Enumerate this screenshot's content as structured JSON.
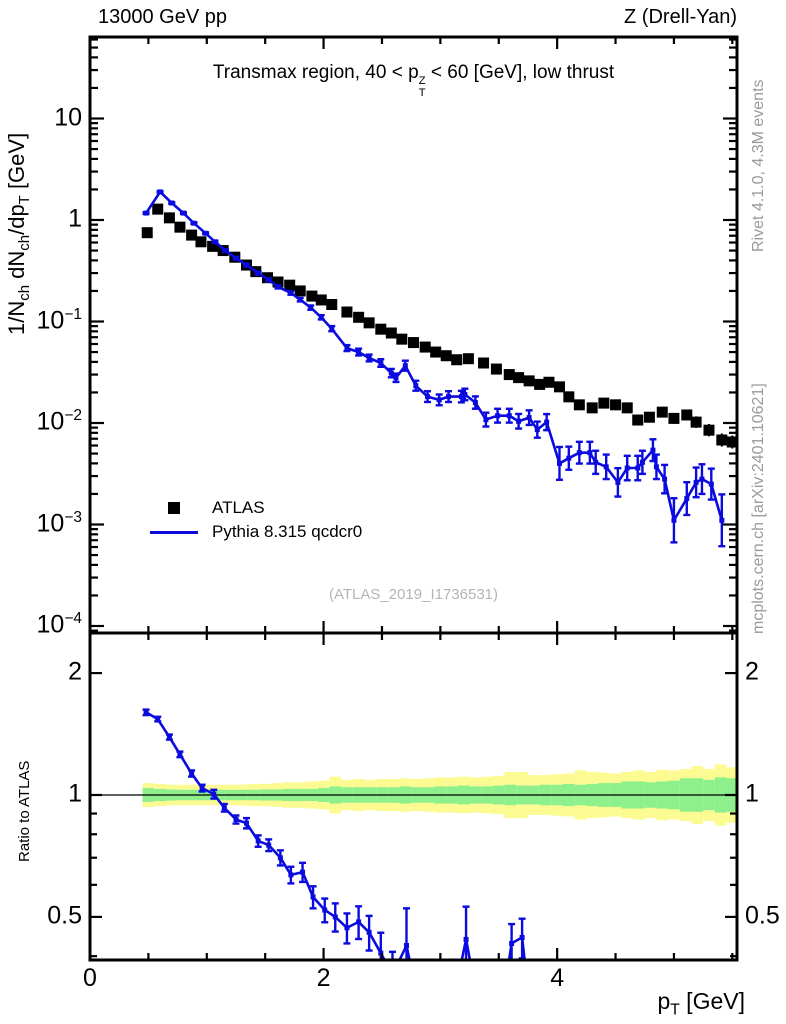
{
  "header": {
    "left": "13000 GeV pp",
    "right": "Z (Drell-Yan)"
  },
  "panel_title": {
    "prefix": "Transmax region, 40 < p",
    "stack_top": "Z",
    "stack_bottom": "T",
    "suffix": " < 60 [GeV], low thrust"
  },
  "watermark": "(ATLAS_2019_I1736531)",
  "side_notes": {
    "top": "Rivet 4.1.0,  4.3M events",
    "bottom": "mcplots.cern.ch [arXiv:2401.10621]"
  },
  "legend": [
    {
      "label": "ATLAS",
      "marker": "square",
      "color": "#000000"
    },
    {
      "label": "Pythia 8.315 qcdcr0",
      "marker": "line",
      "color": "#0b0bdf"
    }
  ],
  "colors": {
    "mc_blue": "#0b0bdf",
    "band_green": "#8df08c",
    "band_yellow": "#fbfb91",
    "note_gray": "#9a9a9a",
    "watermark_gray": "#b5b5b5"
  },
  "axes": {
    "x": {
      "title_parts": [
        {
          "t": "p"
        },
        {
          "t": "T",
          "sub": 1
        },
        {
          "t": " [GeV]"
        }
      ],
      "range": [
        0,
        5.54
      ],
      "major_ticks": [
        {
          "label": "0",
          "v": 0
        },
        {
          "label": "2",
          "v": 2
        },
        {
          "label": "4",
          "v": 4
        }
      ],
      "minor_step": 0.5
    },
    "y_main": {
      "label_parts": [
        {
          "t": "1/N"
        },
        {
          "t": "ch",
          "sub": 1
        },
        {
          "t": " dN"
        },
        {
          "t": "ch",
          "sub": 1
        },
        {
          "t": "/dp"
        },
        {
          "t": "T",
          "sub": 1
        },
        {
          "t": " [GeV]"
        }
      ],
      "log_range": [
        8.6e-05,
        63
      ],
      "ticks": [
        {
          "label": "10",
          "v": 10
        },
        {
          "label": "1",
          "v": 1
        },
        {
          "label": "10",
          "exp": "−1",
          "v": 0.1
        },
        {
          "label": "10",
          "exp": "−2",
          "v": 0.01
        },
        {
          "label": "10",
          "exp": "−3",
          "v": 0.001
        },
        {
          "label": "10",
          "exp": "−4",
          "v": 0.0001
        }
      ]
    },
    "y_ratio": {
      "title": "Ratio to ATLAS",
      "log_range": [
        0.391,
        2.51
      ],
      "ticks": [
        {
          "label": "2",
          "v": 2
        },
        {
          "label": "1",
          "v": 1
        },
        {
          "label": "0.5",
          "v": 0.5
        }
      ]
    }
  },
  "chart_data": {
    "type": "line",
    "title": "Transmax region, 40 < pT^Z < 60 [GeV], low thrust",
    "xlabel": "pT [GeV]",
    "ylabel": "1/Nch dNch/dpT [GeV]",
    "x_range": [
      0,
      5.54
    ],
    "y_main_log_range": [
      8.6e-05,
      63
    ],
    "y_ratio_log_range": [
      0.391,
      2.51
    ],
    "series": [
      {
        "name": "ATLAS",
        "type": "scatter",
        "marker": "filled-square",
        "color": "#000000",
        "points": [
          [
            0.49,
            0.75,
            0.02
          ],
          [
            0.58,
            1.28,
            0.02
          ],
          [
            0.68,
            1.05,
            0.02
          ],
          [
            0.77,
            0.85,
            0.02
          ],
          [
            0.87,
            0.71,
            0.02
          ],
          [
            0.95,
            0.61,
            0.02
          ],
          [
            1.05,
            0.55,
            0.02
          ],
          [
            1.14,
            0.5,
            0.02
          ],
          [
            1.24,
            0.43,
            0.02
          ],
          [
            1.34,
            0.36,
            0.02
          ],
          [
            1.42,
            0.31,
            0.02
          ],
          [
            1.52,
            0.27,
            0.02
          ],
          [
            1.61,
            0.245,
            0.02
          ],
          [
            1.71,
            0.228,
            0.02
          ],
          [
            1.8,
            0.2,
            0.02
          ],
          [
            1.9,
            0.178,
            0.02
          ],
          [
            1.98,
            0.163,
            0.02
          ],
          [
            2.07,
            0.147,
            0.02
          ],
          [
            2.2,
            0.124,
            0.02
          ],
          [
            2.3,
            0.11,
            0.02
          ],
          [
            2.39,
            0.097,
            0.02
          ],
          [
            2.49,
            0.084,
            0.03
          ],
          [
            2.58,
            0.077,
            0.03
          ],
          [
            2.67,
            0.067,
            0.03
          ],
          [
            2.77,
            0.062,
            0.03
          ],
          [
            2.87,
            0.056,
            0.03
          ],
          [
            2.96,
            0.05,
            0.03
          ],
          [
            3.05,
            0.046,
            0.04
          ],
          [
            3.14,
            0.042,
            0.04
          ],
          [
            3.24,
            0.043,
            0.04
          ],
          [
            3.37,
            0.039,
            0.05
          ],
          [
            3.48,
            0.034,
            0.05
          ],
          [
            3.59,
            0.03,
            0.05
          ],
          [
            3.67,
            0.028,
            0.05
          ],
          [
            3.76,
            0.026,
            0.05
          ],
          [
            3.85,
            0.024,
            0.06
          ],
          [
            3.93,
            0.0252,
            0.06
          ],
          [
            4.02,
            0.0227,
            0.07
          ],
          [
            4.1,
            0.0181,
            0.08
          ],
          [
            4.19,
            0.0151,
            0.09
          ],
          [
            4.3,
            0.0141,
            0.09
          ],
          [
            4.4,
            0.0157,
            0.09
          ],
          [
            4.5,
            0.0151,
            0.1
          ],
          [
            4.6,
            0.0141,
            0.1
          ],
          [
            4.69,
            0.0107,
            0.13
          ],
          [
            4.79,
            0.0114,
            0.12
          ],
          [
            4.9,
            0.0128,
            0.12
          ],
          [
            5.0,
            0.0111,
            0.13
          ],
          [
            5.11,
            0.012,
            0.13
          ],
          [
            5.19,
            0.0102,
            0.14
          ],
          [
            5.3,
            0.0085,
            0.15
          ],
          [
            5.41,
            0.0068,
            0.16
          ],
          [
            5.5,
            0.0065,
            0.16
          ]
        ]
      },
      {
        "name": "Pythia 8.315 qcdcr0",
        "type": "line",
        "marker": "small-square",
        "color": "#0b0bdf",
        "points": [
          [
            0.48,
            1.17,
            0.02
          ],
          [
            0.6,
            1.89,
            0.02
          ],
          [
            0.7,
            1.47,
            0.02
          ],
          [
            0.8,
            1.17,
            0.02
          ],
          [
            0.89,
            0.93,
            0.02
          ],
          [
            0.99,
            0.74,
            0.02
          ],
          [
            1.07,
            0.61,
            0.025
          ],
          [
            1.16,
            0.5,
            0.025
          ],
          [
            1.25,
            0.42,
            0.03
          ],
          [
            1.34,
            0.36,
            0.03
          ],
          [
            1.44,
            0.3,
            0.03
          ],
          [
            1.53,
            0.257,
            0.035
          ],
          [
            1.61,
            0.219,
            0.035
          ],
          [
            1.72,
            0.191,
            0.04
          ],
          [
            1.8,
            0.164,
            0.04
          ],
          [
            1.89,
            0.137,
            0.05
          ],
          [
            1.98,
            0.11,
            0.05
          ],
          [
            2.07,
            0.085,
            0.06
          ],
          [
            2.2,
            0.0547,
            0.07
          ],
          [
            2.3,
            0.05,
            0.08
          ],
          [
            2.39,
            0.0437,
            0.08
          ],
          [
            2.49,
            0.039,
            0.09
          ],
          [
            2.58,
            0.031,
            0.1
          ],
          [
            2.62,
            0.0279,
            0.1
          ],
          [
            2.7,
            0.0367,
            0.12
          ],
          [
            2.79,
            0.0233,
            0.12
          ],
          [
            2.89,
            0.0182,
            0.13
          ],
          [
            2.99,
            0.0169,
            0.13
          ],
          [
            3.07,
            0.0182,
            0.13
          ],
          [
            3.18,
            0.0182,
            0.14
          ],
          [
            3.21,
            0.0191,
            0.14
          ],
          [
            3.3,
            0.0159,
            0.15
          ],
          [
            3.39,
            0.0108,
            0.17
          ],
          [
            3.49,
            0.0118,
            0.17
          ],
          [
            3.59,
            0.0118,
            0.17
          ],
          [
            3.67,
            0.0104,
            0.18
          ],
          [
            3.76,
            0.0113,
            0.18
          ],
          [
            3.83,
            0.0086,
            0.2
          ],
          [
            3.91,
            0.0102,
            0.2
          ],
          [
            4.02,
            0.004,
            0.45
          ],
          [
            4.1,
            0.0045,
            0.3
          ],
          [
            4.19,
            0.0051,
            0.28
          ],
          [
            4.28,
            0.0051,
            0.28
          ],
          [
            4.33,
            0.0041,
            0.3
          ],
          [
            4.42,
            0.0037,
            0.32
          ],
          [
            4.52,
            0.0026,
            0.38
          ],
          [
            4.6,
            0.0036,
            0.32
          ],
          [
            4.69,
            0.0036,
            0.32
          ],
          [
            4.73,
            0.0041,
            0.3
          ],
          [
            4.82,
            0.0054,
            0.28
          ],
          [
            4.85,
            0.0037,
            0.32
          ],
          [
            4.92,
            0.0028,
            0.38
          ],
          [
            5.0,
            0.0011,
            0.65
          ],
          [
            5.11,
            0.0018,
            0.45
          ],
          [
            5.19,
            0.0026,
            0.4
          ],
          [
            5.24,
            0.0028,
            0.4
          ],
          [
            5.32,
            0.0025,
            0.42
          ],
          [
            5.41,
            0.0011,
            0.8
          ]
        ]
      }
    ],
    "ratio": {
      "line": [
        [
          0.48,
          1.6,
          0.025
        ],
        [
          0.58,
          1.54,
          0.02
        ],
        [
          0.68,
          1.39,
          0.02
        ],
        [
          0.77,
          1.26,
          0.02
        ],
        [
          0.87,
          1.13,
          0.02
        ],
        [
          0.96,
          1.04,
          0.02
        ],
        [
          1.06,
          1.005,
          0.025
        ],
        [
          1.15,
          0.93,
          0.02
        ],
        [
          1.25,
          0.87,
          0.02
        ],
        [
          1.34,
          0.852,
          0.025
        ],
        [
          1.44,
          0.77,
          0.025
        ],
        [
          1.53,
          0.752,
          0.025
        ],
        [
          1.63,
          0.7,
          0.03
        ],
        [
          1.72,
          0.635,
          0.03
        ],
        [
          1.82,
          0.645,
          0.035
        ],
        [
          1.91,
          0.56,
          0.035
        ],
        [
          2.01,
          0.52,
          0.035
        ],
        [
          2.1,
          0.5,
          0.04
        ],
        [
          2.2,
          0.47,
          0.04
        ],
        [
          2.3,
          0.486,
          0.045
        ],
        [
          2.39,
          0.458,
          0.045
        ],
        [
          2.49,
          0.407,
          0.05
        ],
        [
          2.59,
          0.36,
          0.05
        ],
        [
          2.71,
          0.425,
          0.1
        ],
        [
          2.8,
          0.32,
          0.05
        ]
      ],
      "spike_segments": [
        [
          [
            3.13,
            0.33,
            0
          ],
          [
            3.22,
            0.44,
            0.09
          ],
          [
            3.3,
            0.33,
            0
          ]
        ],
        [
          [
            3.55,
            0.33,
            0
          ],
          [
            3.61,
            0.43,
            0.05
          ],
          [
            3.7,
            0.445,
            0.05
          ],
          [
            3.76,
            0.31,
            0
          ]
        ]
      ],
      "bands": {
        "x0": 0.45,
        "bin_width": 0.1,
        "green_pct": [
          4,
          3.5,
          3.2,
          3,
          3,
          3,
          3,
          3,
          3,
          3,
          3.2,
          3.2,
          3.5,
          3.5,
          3.5,
          4,
          5,
          4.5,
          4.5,
          4.5,
          4.5,
          4.5,
          5,
          4.5,
          4.5,
          5,
          5,
          5.5,
          5,
          5,
          5.5,
          6,
          5.5,
          5.5,
          6,
          6,
          6.5,
          6,
          6.5,
          7,
          7,
          8,
          8,
          7.5,
          8,
          8.5,
          10,
          10,
          9,
          10.5,
          10
        ],
        "yellow_pct": [
          7,
          6.5,
          6,
          6,
          6,
          6,
          6,
          6,
          6.2,
          6.5,
          6.5,
          7,
          7.5,
          7.5,
          8,
          8.5,
          11,
          9,
          9.5,
          9,
          9.5,
          9.5,
          10,
          9.5,
          10,
          10.5,
          10.5,
          11,
          10.5,
          11,
          11.5,
          14,
          14,
          12,
          12,
          12.5,
          13,
          15,
          14,
          13.5,
          13,
          14,
          15,
          14,
          15.5,
          15,
          16,
          18,
          16,
          19,
          17
        ]
      }
    }
  }
}
